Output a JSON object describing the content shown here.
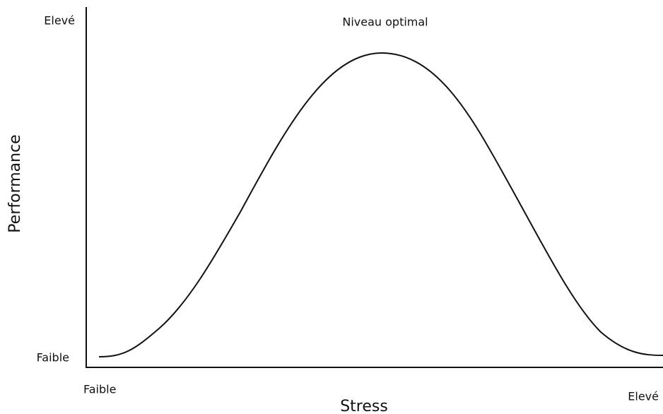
{
  "diagram": {
    "annotation": "Niveau optimal",
    "y_axis": {
      "label": "Performance",
      "high": "Elevé",
      "low": "Faible"
    },
    "x_axis": {
      "label": "Stress",
      "low": "Faible",
      "high": "Elevé"
    }
  }
}
